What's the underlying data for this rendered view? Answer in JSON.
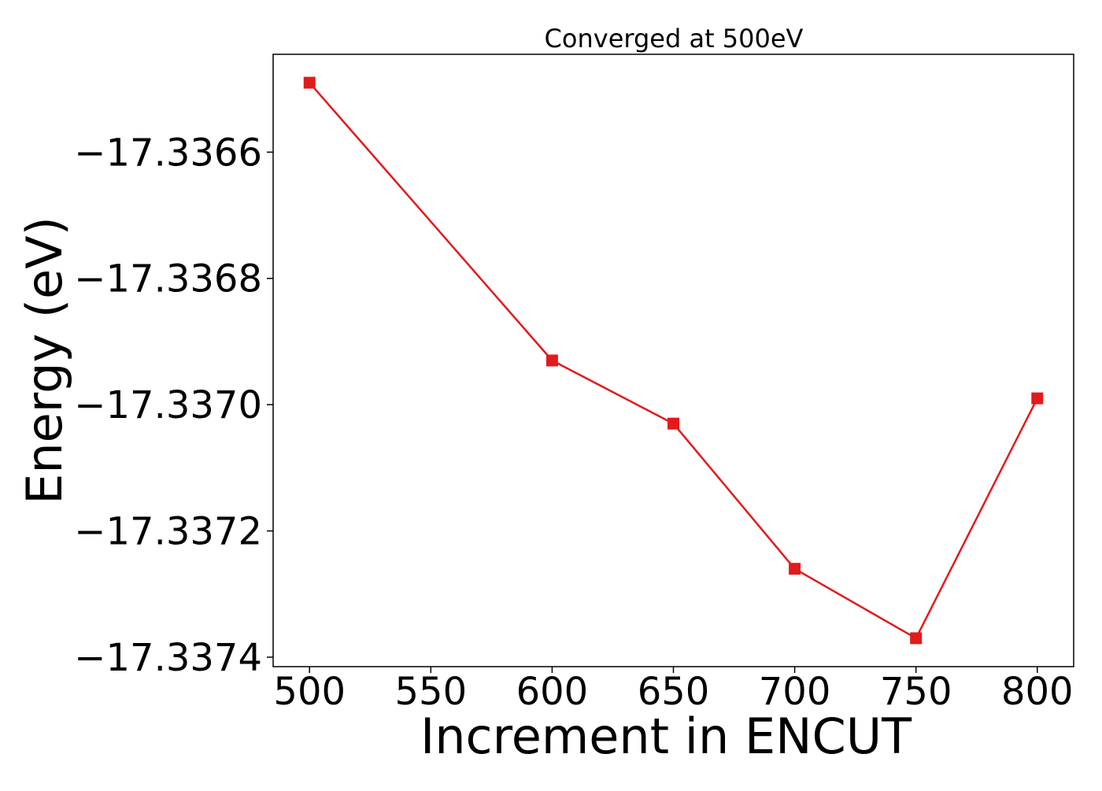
{
  "chart_data": {
    "type": "line",
    "title": "Converged at 500eV",
    "xlabel": "Increment in ENCUT",
    "ylabel": "Energy (eV)",
    "x": [
      500,
      600,
      650,
      700,
      750,
      800
    ],
    "series": [
      {
        "values": [
          -17.33649,
          -17.33693,
          -17.33703,
          -17.33726,
          -17.33737,
          -17.33699
        ],
        "color": "#e31a1c",
        "marker": "square"
      }
    ],
    "xlim": [
      485,
      815
    ],
    "ylim": [
      -17.337415,
      -17.336445
    ],
    "xticks": [
      500,
      550,
      600,
      650,
      700,
      750,
      800
    ],
    "xtick_labels": [
      "500",
      "550",
      "600",
      "650",
      "700",
      "750",
      "800"
    ],
    "yticks": [
      -17.3366,
      -17.3368,
      -17.337,
      -17.3372,
      -17.3374
    ],
    "ytick_labels": [
      "−17.3366",
      "−17.3368",
      "−17.3370",
      "−17.3372",
      "−17.3374"
    ],
    "grid": false,
    "legend": "none"
  }
}
